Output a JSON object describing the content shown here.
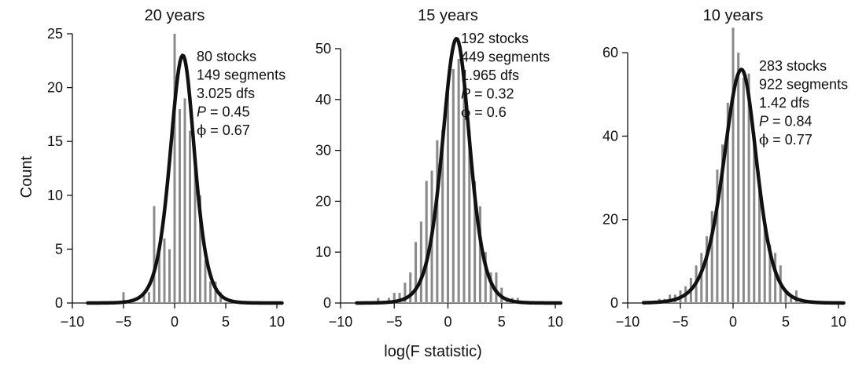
{
  "figure": {
    "ylabel": "Count",
    "xlabel": "log(F statistic)"
  },
  "chart_data": [
    {
      "type": "bar",
      "title": "20 years",
      "xlim": [
        -10,
        10
      ],
      "ylim": [
        0,
        25
      ],
      "xticks": [
        -10,
        -5,
        0,
        5,
        10
      ],
      "yticks": [
        0,
        5,
        10,
        15,
        20,
        25
      ],
      "bins": [
        {
          "x": -8.5,
          "count": 0
        },
        {
          "x": -8,
          "count": 0
        },
        {
          "x": -7.5,
          "count": 0
        },
        {
          "x": -7,
          "count": 0
        },
        {
          "x": -6.5,
          "count": 0
        },
        {
          "x": -6,
          "count": 0
        },
        {
          "x": -5.5,
          "count": 0
        },
        {
          "x": -5,
          "count": 1
        },
        {
          "x": -4.5,
          "count": 0
        },
        {
          "x": -4,
          "count": 0
        },
        {
          "x": -3.5,
          "count": 0
        },
        {
          "x": -3,
          "count": 1
        },
        {
          "x": -2.5,
          "count": 1
        },
        {
          "x": -2,
          "count": 9
        },
        {
          "x": -1.5,
          "count": 5
        },
        {
          "x": -1,
          "count": 6
        },
        {
          "x": -0.5,
          "count": 5
        },
        {
          "x": 0,
          "count": 25
        },
        {
          "x": 0.5,
          "count": 18
        },
        {
          "x": 1,
          "count": 19
        },
        {
          "x": 1.5,
          "count": 16
        },
        {
          "x": 2,
          "count": 14
        },
        {
          "x": 2.5,
          "count": 10
        },
        {
          "x": 3,
          "count": 4
        },
        {
          "x": 3.5,
          "count": 2
        },
        {
          "x": 4,
          "count": 2
        },
        {
          "x": 4.5,
          "count": 1
        },
        {
          "x": 5,
          "count": 0
        },
        {
          "x": 5.5,
          "count": 0
        },
        {
          "x": 6,
          "count": 0
        },
        {
          "x": 6.5,
          "count": 0
        },
        {
          "x": 7,
          "count": 0
        },
        {
          "x": 7.5,
          "count": 0
        },
        {
          "x": 8,
          "count": 0
        },
        {
          "x": 8.5,
          "count": 0
        }
      ],
      "curve": {
        "peak_x": 0.8,
        "peak_y": 23,
        "sigma_left": 1.45,
        "sigma_right": 1.35,
        "x_range": [
          -8.5,
          10.5
        ]
      },
      "annotation": {
        "stocks": "80 stocks",
        "segments": "149 segments",
        "dfs": "3.025 dfs",
        "p_label": "P",
        "p_value": " = 0.45",
        "phi_label": "ϕ",
        "phi_value": " = 0.67"
      }
    },
    {
      "type": "bar",
      "title": "15 years",
      "xlim": [
        -10,
        10
      ],
      "ylim": [
        0,
        50
      ],
      "xticks": [
        -10,
        -5,
        0,
        5,
        10
      ],
      "yticks": [
        0,
        10,
        20,
        30,
        40,
        50
      ],
      "bins": [
        {
          "x": -8.5,
          "count": 0
        },
        {
          "x": -8,
          "count": 0
        },
        {
          "x": -7.5,
          "count": 0
        },
        {
          "x": -7,
          "count": 0
        },
        {
          "x": -6.5,
          "count": 1
        },
        {
          "x": -6,
          "count": 0
        },
        {
          "x": -5.5,
          "count": 1
        },
        {
          "x": -5,
          "count": 2
        },
        {
          "x": -4.5,
          "count": 2
        },
        {
          "x": -4,
          "count": 4
        },
        {
          "x": -3.5,
          "count": 6
        },
        {
          "x": -3,
          "count": 12
        },
        {
          "x": -2.5,
          "count": 16
        },
        {
          "x": -2,
          "count": 24
        },
        {
          "x": -1.5,
          "count": 26
        },
        {
          "x": -1,
          "count": 32
        },
        {
          "x": -0.5,
          "count": 34
        },
        {
          "x": 0,
          "count": 43
        },
        {
          "x": 0.5,
          "count": 46
        },
        {
          "x": 1,
          "count": 48
        },
        {
          "x": 1.5,
          "count": 44
        },
        {
          "x": 2,
          "count": 34
        },
        {
          "x": 2.5,
          "count": 24
        },
        {
          "x": 3,
          "count": 19
        },
        {
          "x": 3.5,
          "count": 10
        },
        {
          "x": 4,
          "count": 6
        },
        {
          "x": 4.5,
          "count": 6
        },
        {
          "x": 5,
          "count": 3
        },
        {
          "x": 5.5,
          "count": 1
        },
        {
          "x": 6,
          "count": 1
        },
        {
          "x": 6.5,
          "count": 1
        },
        {
          "x": 7,
          "count": 0
        },
        {
          "x": 7.5,
          "count": 0
        },
        {
          "x": 8,
          "count": 0
        },
        {
          "x": 8.5,
          "count": 0
        }
      ],
      "curve": {
        "peak_x": 0.8,
        "peak_y": 52,
        "sigma_left": 1.55,
        "sigma_right": 1.45,
        "x_range": [
          -8.5,
          10.5
        ]
      },
      "annotation": {
        "stocks": "192 stocks",
        "segments": "449 segments",
        "dfs": "1.965 dfs",
        "p_label": "P",
        "p_value": " = 0.32",
        "phi_label": "ϕ",
        "phi_value": " = 0.6"
      }
    },
    {
      "type": "bar",
      "title": "10 years",
      "xlim": [
        -10,
        10
      ],
      "ylim": [
        0,
        70
      ],
      "xticks": [
        -10,
        -5,
        0,
        5,
        10
      ],
      "yticks": [
        0,
        20,
        40,
        60
      ],
      "bins": [
        {
          "x": -8.5,
          "count": 0
        },
        {
          "x": -8,
          "count": 0
        },
        {
          "x": -7.5,
          "count": 0
        },
        {
          "x": -7,
          "count": 1
        },
        {
          "x": -6.5,
          "count": 1
        },
        {
          "x": -6,
          "count": 2
        },
        {
          "x": -5.5,
          "count": 2
        },
        {
          "x": -5,
          "count": 3
        },
        {
          "x": -4.5,
          "count": 4
        },
        {
          "x": -4,
          "count": 6
        },
        {
          "x": -3.5,
          "count": 9
        },
        {
          "x": -3,
          "count": 12
        },
        {
          "x": -2.5,
          "count": 16
        },
        {
          "x": -2,
          "count": 22
        },
        {
          "x": -1.5,
          "count": 32
        },
        {
          "x": -1,
          "count": 38
        },
        {
          "x": -0.5,
          "count": 48
        },
        {
          "x": 0,
          "count": 66
        },
        {
          "x": 0.5,
          "count": 60
        },
        {
          "x": 1,
          "count": 54
        },
        {
          "x": 1.5,
          "count": 55
        },
        {
          "x": 2,
          "count": 41
        },
        {
          "x": 2.5,
          "count": 28
        },
        {
          "x": 3,
          "count": 20
        },
        {
          "x": 3.5,
          "count": 14
        },
        {
          "x": 4,
          "count": 12
        },
        {
          "x": 4.5,
          "count": 9
        },
        {
          "x": 5,
          "count": 3
        },
        {
          "x": 5.5,
          "count": 2
        },
        {
          "x": 6,
          "count": 3
        },
        {
          "x": 6.5,
          "count": 1
        },
        {
          "x": 7,
          "count": 0
        },
        {
          "x": 7.5,
          "count": 0
        },
        {
          "x": 8,
          "count": 0
        },
        {
          "x": 8.5,
          "count": 0
        }
      ],
      "curve": {
        "peak_x": 0.8,
        "peak_y": 56,
        "sigma_left": 2.0,
        "sigma_right": 1.7,
        "x_range": [
          -8.5,
          10.5
        ]
      },
      "annotation": {
        "stocks": "283 stocks",
        "segments": "922 segments",
        "dfs": "1.42 dfs",
        "p_label": "P",
        "p_value": " = 0.84",
        "phi_label": "ϕ",
        "phi_value": " = 0.77"
      }
    }
  ]
}
